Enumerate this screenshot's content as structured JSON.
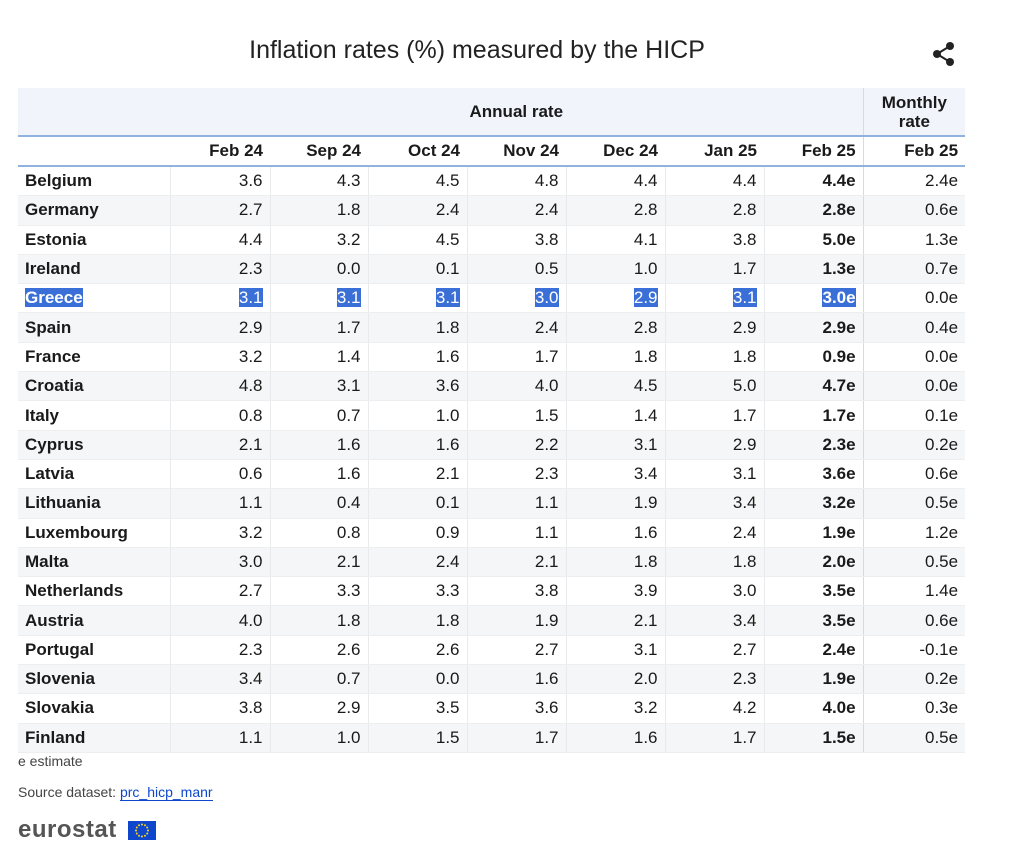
{
  "header": {
    "title": "Inflation rates (%) measured by the HICP"
  },
  "table": {
    "group_headers": [
      "Annual rate",
      "Monthly rate"
    ],
    "columns": [
      "Feb 24",
      "Sep 24",
      "Oct 24",
      "Nov 24",
      "Dec 24",
      "Jan 25",
      "Feb 25",
      "Feb 25"
    ],
    "rows": [
      [
        "Belgium",
        "3.6",
        "4.3",
        "4.5",
        "4.8",
        "4.4",
        "4.4",
        "4.4e",
        "2.4e"
      ],
      [
        "Germany",
        "2.7",
        "1.8",
        "2.4",
        "2.4",
        "2.8",
        "2.8",
        "2.8e",
        "0.6e"
      ],
      [
        "Estonia",
        "4.4",
        "3.2",
        "4.5",
        "3.8",
        "4.1",
        "3.8",
        "5.0e",
        "1.3e"
      ],
      [
        "Ireland",
        "2.3",
        "0.0",
        "0.1",
        "0.5",
        "1.0",
        "1.7",
        "1.3e",
        "0.7e"
      ],
      [
        "Greece",
        "3.1",
        "3.1",
        "3.1",
        "3.0",
        "2.9",
        "3.1",
        "3.0e",
        "0.0e"
      ],
      [
        "Spain",
        "2.9",
        "1.7",
        "1.8",
        "2.4",
        "2.8",
        "2.9",
        "2.9e",
        "0.4e"
      ],
      [
        "France",
        "3.2",
        "1.4",
        "1.6",
        "1.7",
        "1.8",
        "1.8",
        "0.9e",
        "0.0e"
      ],
      [
        "Croatia",
        "4.8",
        "3.1",
        "3.6",
        "4.0",
        "4.5",
        "5.0",
        "4.7e",
        "0.0e"
      ],
      [
        "Italy",
        "0.8",
        "0.7",
        "1.0",
        "1.5",
        "1.4",
        "1.7",
        "1.7e",
        "0.1e"
      ],
      [
        "Cyprus",
        "2.1",
        "1.6",
        "1.6",
        "2.2",
        "3.1",
        "2.9",
        "2.3e",
        "0.2e"
      ],
      [
        "Latvia",
        "0.6",
        "1.6",
        "2.1",
        "2.3",
        "3.4",
        "3.1",
        "3.6e",
        "0.6e"
      ],
      [
        "Lithuania",
        "1.1",
        "0.4",
        "0.1",
        "1.1",
        "1.9",
        "3.4",
        "3.2e",
        "0.5e"
      ],
      [
        "Luxembourg",
        "3.2",
        "0.8",
        "0.9",
        "1.1",
        "1.6",
        "2.4",
        "1.9e",
        "1.2e"
      ],
      [
        "Malta",
        "3.0",
        "2.1",
        "2.4",
        "2.1",
        "1.8",
        "1.8",
        "2.0e",
        "0.5e"
      ],
      [
        "Netherlands",
        "2.7",
        "3.3",
        "3.3",
        "3.8",
        "3.9",
        "3.0",
        "3.5e",
        "1.4e"
      ],
      [
        "Austria",
        "4.0",
        "1.8",
        "1.8",
        "1.9",
        "2.1",
        "3.4",
        "3.5e",
        "0.6e"
      ],
      [
        "Portugal",
        "2.3",
        "2.6",
        "2.6",
        "2.7",
        "3.1",
        "2.7",
        "2.4e",
        "-0.1e"
      ],
      [
        "Slovenia",
        "3.4",
        "0.7",
        "0.0",
        "1.6",
        "2.0",
        "2.3",
        "1.9e",
        "0.2e"
      ],
      [
        "Slovakia",
        "3.8",
        "2.9",
        "3.5",
        "3.6",
        "3.2",
        "4.2",
        "4.0e",
        "0.3e"
      ],
      [
        "Finland",
        "1.1",
        "1.0",
        "1.5",
        "1.7",
        "1.6",
        "1.7",
        "1.5e",
        "0.5e"
      ]
    ]
  },
  "footer": {
    "note": "e estimate",
    "source_label": "Source dataset:",
    "source_link": "prc_hicp_manr",
    "logo": "eurostat"
  }
}
